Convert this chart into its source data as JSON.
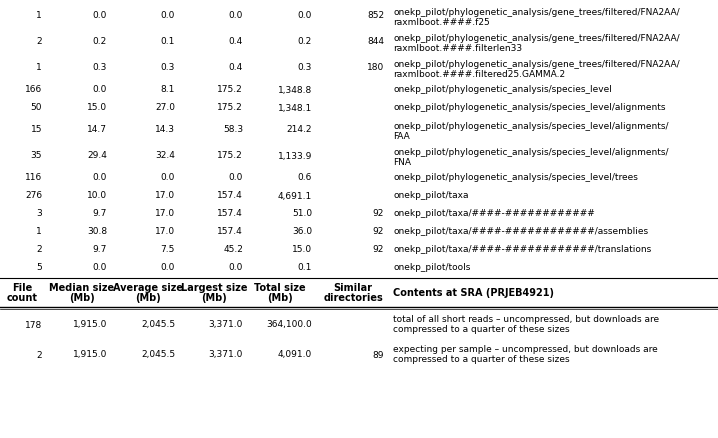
{
  "rows": [
    [
      "1",
      "0.0",
      "0.0",
      "0.0",
      "0.0",
      "852",
      "onekp_pilot/phylogenetic_analysis/gene_trees/filtered/FNA2AA/",
      "raxmlboot.####.f25"
    ],
    [
      "2",
      "0.2",
      "0.1",
      "0.4",
      "0.2",
      "844",
      "onekp_pilot/phylogenetic_analysis/gene_trees/filtered/FNA2AA/",
      "raxmlboot.####.filterlen33"
    ],
    [
      "1",
      "0.3",
      "0.3",
      "0.4",
      "0.3",
      "180",
      "onekp_pilot/phylogenetic_analysis/gene_trees/filtered/FNA2AA/",
      "raxmlboot.####.filtered25.GAMMA.2"
    ],
    [
      "166",
      "0.0",
      "8.1",
      "175.2",
      "1,348.8",
      "",
      "onekp_pilot/phylogenetic_analysis/species_level",
      ""
    ],
    [
      "50",
      "15.0",
      "27.0",
      "175.2",
      "1,348.1",
      "",
      "onekp_pilot/phylogenetic_analysis/species_level/alignments",
      ""
    ],
    [
      "15",
      "14.7",
      "14.3",
      "58.3",
      "214.2",
      "",
      "onekp_pilot/phylogenetic_analysis/species_level/alignments/",
      "FAA"
    ],
    [
      "35",
      "29.4",
      "32.4",
      "175.2",
      "1,133.9",
      "",
      "onekp_pilot/phylogenetic_analysis/species_level/alignments/",
      "FNA"
    ],
    [
      "116",
      "0.0",
      "0.0",
      "0.0",
      "0.6",
      "",
      "onekp_pilot/phylogenetic_analysis/species_level/trees",
      ""
    ],
    [
      "276",
      "10.0",
      "17.0",
      "157.4",
      "4,691.1",
      "",
      "onekp_pilot/taxa",
      ""
    ],
    [
      "3",
      "9.7",
      "17.0",
      "157.4",
      "51.0",
      "92",
      "onekp_pilot/taxa/####-############",
      ""
    ],
    [
      "1",
      "30.8",
      "17.0",
      "157.4",
      "36.0",
      "92",
      "onekp_pilot/taxa/####-############/assemblies",
      ""
    ],
    [
      "2",
      "9.7",
      "7.5",
      "45.2",
      "15.0",
      "92",
      "onekp_pilot/taxa/####-############/translations",
      ""
    ],
    [
      "5",
      "0.0",
      "0.0",
      "0.0",
      "0.1",
      "",
      "onekp_pilot/tools",
      ""
    ]
  ],
  "header": [
    "File\ncount",
    "Median size\n(Mb)",
    "Average size\n(Mb)",
    "Largest size\n(Mb)",
    "Total size\n(Mb)",
    "Similar\ndirectories",
    "Contents at SRA (PRJEB4921)"
  ],
  "footer_rows": [
    [
      "178",
      "1,915.0",
      "2,045.5",
      "3,371.0",
      "364,100.0",
      "",
      "total of all short reads – uncompressed, but downloads are",
      "compressed to a quarter of these sizes"
    ],
    [
      "2",
      "1,915.0",
      "2,045.5",
      "3,371.0",
      "4,091.0",
      "89",
      "expecting per sample – uncompressed, but downloads are",
      "compressed to a quarter of these sizes"
    ]
  ],
  "bg_color": "#ffffff",
  "text_color": "#000000",
  "font_size": 6.5,
  "header_font_size": 7.0
}
